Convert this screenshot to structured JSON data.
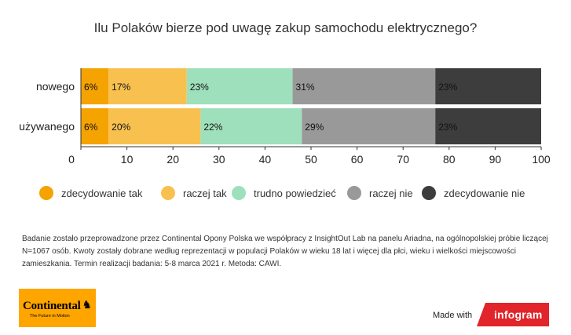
{
  "chart_data": {
    "type": "bar",
    "orientation": "horizontal",
    "stacked": true,
    "title": "Ilu Polaków bierze pod uwagę zakup samochodu elektrycznego?",
    "categories": [
      "nowego",
      "używanego"
    ],
    "series": [
      {
        "name": "zdecydowanie tak",
        "values": [
          6,
          6
        ],
        "color": "#f5a300"
      },
      {
        "name": "raczej tak",
        "values": [
          17,
          20
        ],
        "color": "#f8c14f"
      },
      {
        "name": "trudno powiedzieć",
        "values": [
          23,
          22
        ],
        "color": "#9ee0bc"
      },
      {
        "name": "raczej nie",
        "values": [
          31,
          29
        ],
        "color": "#999999"
      },
      {
        "name": "zdecydowanie nie",
        "values": [
          23,
          23
        ],
        "color": "#3d3d3d"
      }
    ],
    "value_labels": [
      [
        "6%",
        "17%",
        "23%",
        "31%",
        "23%"
      ],
      [
        "6%",
        "20%",
        "22%",
        "29%",
        "23%"
      ]
    ],
    "xlim": [
      0,
      100
    ],
    "xticks": [
      "0",
      "10",
      "20",
      "30",
      "40",
      "50",
      "60",
      "70",
      "80",
      "90",
      "100"
    ],
    "legend_position": "bottom",
    "grid": false
  },
  "footnote": "Badanie zostało przeprowadzone przez Continental Opony Polska we współpracy z InsightOut Lab na panelu Ariadna, na ogólnopolskiej próbie liczącej N=1067 osób. Kwoty zostały dobrane według reprezentacji w populacji Polaków w wieku 18 lat i więcej dla płci, wieku i wielkości miejscowości zamieszkania. Termin realizacji badania:  5-8 marca 2021 r. Metoda: CAWI.",
  "logo": {
    "name": "Continental",
    "tagline": "The Future in Motion",
    "color": "#ffa500"
  },
  "made_with": "Made with",
  "infogram_label": "infogram",
  "infogram_color": "#e1252a"
}
